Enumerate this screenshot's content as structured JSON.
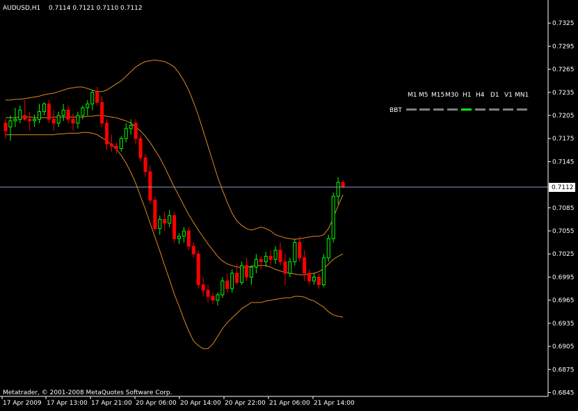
{
  "header": {
    "symbol": "AUDUSD,H1",
    "ohlc": "0.7114 0.7121 0.7110 0.7112"
  },
  "footer": {
    "copyright": "Metatrader, © 2001-2008 MetaQuotes Software Corp."
  },
  "indicator": {
    "label": "BBT",
    "timeframes": [
      "M1",
      "M5",
      "M15",
      "M30",
      "H1",
      "H4",
      "D1",
      "V1",
      "MN1"
    ],
    "active": "H1",
    "active_color": "#00ff00",
    "inactive_color": "#808080"
  },
  "colors": {
    "background": "#000000",
    "axis": "#ffffff",
    "bull": "#00ff00",
    "bear": "#ff0000",
    "bands": "#e08a1e",
    "price_line": "#8a9ec4"
  },
  "chart_data": {
    "type": "candlestick",
    "ylim": [
      0.684,
      0.7355
    ],
    "y_ticks": [
      "0.7325",
      "0.7295",
      "0.7265",
      "0.7235",
      "0.7205",
      "0.7175",
      "0.7145",
      "0.7085",
      "0.7055",
      "0.7025",
      "0.6995",
      "0.6965",
      "0.6935",
      "0.6905",
      "0.6875",
      "0.6845"
    ],
    "current_price": "0.7112",
    "x_labels": [
      "17 Apr 2009",
      "17 Apr 13:00",
      "17 Apr 21:00",
      "20 Apr 06:00",
      "20 Apr 14:00",
      "20 Apr 22:00",
      "21 Apr 06:00",
      "21 Apr 14:00"
    ],
    "candles": [
      [
        0.7195,
        0.72,
        0.7175,
        0.7185
      ],
      [
        0.719,
        0.7205,
        0.7172,
        0.7198
      ],
      [
        0.7198,
        0.7215,
        0.719,
        0.72
      ],
      [
        0.72,
        0.7218,
        0.7195,
        0.7212
      ],
      [
        0.7205,
        0.7225,
        0.7198,
        0.72
      ],
      [
        0.72,
        0.721,
        0.7185,
        0.7198
      ],
      [
        0.7198,
        0.7206,
        0.719,
        0.72
      ],
      [
        0.72,
        0.722,
        0.7195,
        0.721
      ],
      [
        0.721,
        0.7222,
        0.7205,
        0.722
      ],
      [
        0.722,
        0.7225,
        0.7195,
        0.72
      ],
      [
        0.72,
        0.7212,
        0.7185,
        0.7195
      ],
      [
        0.7195,
        0.721,
        0.719,
        0.7205
      ],
      [
        0.7205,
        0.722,
        0.7198,
        0.7212
      ],
      [
        0.7212,
        0.7218,
        0.7195,
        0.72
      ],
      [
        0.72,
        0.7208,
        0.7185,
        0.7195
      ],
      [
        0.7195,
        0.721,
        0.7188,
        0.7205
      ],
      [
        0.7205,
        0.7218,
        0.72,
        0.7215
      ],
      [
        0.7215,
        0.7225,
        0.7205,
        0.722
      ],
      [
        0.722,
        0.7238,
        0.7212,
        0.7235
      ],
      [
        0.7235,
        0.7242,
        0.7218,
        0.7222
      ],
      [
        0.7222,
        0.723,
        0.719,
        0.7195
      ],
      [
        0.7195,
        0.72,
        0.716,
        0.7168
      ],
      [
        0.7168,
        0.718,
        0.7158,
        0.7165
      ],
      [
        0.7165,
        0.717,
        0.7155,
        0.7162
      ],
      [
        0.7162,
        0.7178,
        0.7158,
        0.7175
      ],
      [
        0.7175,
        0.7195,
        0.717,
        0.7188
      ],
      [
        0.7188,
        0.72,
        0.718,
        0.7192
      ],
      [
        0.7195,
        0.72,
        0.7168,
        0.7175
      ],
      [
        0.7175,
        0.718,
        0.7145,
        0.715
      ],
      [
        0.715,
        0.7155,
        0.7125,
        0.7132
      ],
      [
        0.7132,
        0.714,
        0.709,
        0.7095
      ],
      [
        0.7095,
        0.71,
        0.7055,
        0.7058
      ],
      [
        0.7058,
        0.7075,
        0.705,
        0.707
      ],
      [
        0.707,
        0.708,
        0.7055,
        0.7065
      ],
      [
        0.7065,
        0.7082,
        0.706,
        0.7075
      ],
      [
        0.7075,
        0.708,
        0.704,
        0.7045
      ],
      [
        0.7045,
        0.7052,
        0.7038,
        0.7048
      ],
      [
        0.7048,
        0.706,
        0.704,
        0.7055
      ],
      [
        0.7055,
        0.706,
        0.703,
        0.7035
      ],
      [
        0.7035,
        0.704,
        0.702,
        0.7025
      ],
      [
        0.7025,
        0.703,
        0.698,
        0.6985
      ],
      [
        0.6985,
        0.6995,
        0.697,
        0.6978
      ],
      [
        0.6978,
        0.6985,
        0.6962,
        0.697
      ],
      [
        0.697,
        0.6975,
        0.696,
        0.6965
      ],
      [
        0.6965,
        0.6975,
        0.6958,
        0.6972
      ],
      [
        0.6972,
        0.6995,
        0.6968,
        0.699
      ],
      [
        0.699,
        0.7,
        0.6975,
        0.698
      ],
      [
        0.698,
        0.7005,
        0.6975,
        0.7
      ],
      [
        0.7,
        0.7012,
        0.6985,
        0.6988
      ],
      [
        0.6988,
        0.7015,
        0.6985,
        0.701
      ],
      [
        0.701,
        0.702,
        0.699,
        0.6995
      ],
      [
        0.6995,
        0.701,
        0.6985,
        0.7008
      ],
      [
        0.7008,
        0.7025,
        0.7,
        0.7018
      ],
      [
        0.7018,
        0.7022,
        0.7005,
        0.7015
      ],
      [
        0.7015,
        0.7028,
        0.7008,
        0.7022
      ],
      [
        0.7022,
        0.703,
        0.701,
        0.7018
      ],
      [
        0.7018,
        0.7035,
        0.7012,
        0.703
      ],
      [
        0.703,
        0.704,
        0.701,
        0.7015
      ],
      [
        0.7015,
        0.7025,
        0.6985,
        0.7
      ],
      [
        0.7,
        0.702,
        0.6995,
        0.7015
      ],
      [
        0.7015,
        0.7045,
        0.701,
        0.704
      ],
      [
        0.704,
        0.7048,
        0.7015,
        0.702
      ],
      [
        0.702,
        0.703,
        0.699,
        0.7
      ],
      [
        0.7,
        0.7005,
        0.6985,
        0.699
      ],
      [
        0.699,
        0.7,
        0.6985,
        0.6995
      ],
      [
        0.6995,
        0.7,
        0.698,
        0.6985
      ],
      [
        0.6985,
        0.7025,
        0.6982,
        0.702
      ],
      [
        0.702,
        0.705,
        0.7015,
        0.7045
      ],
      [
        0.7045,
        0.7105,
        0.704,
        0.71
      ],
      [
        0.71,
        0.7125,
        0.709,
        0.7118
      ],
      [
        0.7118,
        0.7121,
        0.711,
        0.7112
      ]
    ],
    "bands": {
      "upper": [
        0.7225,
        0.7225,
        0.7226,
        0.7226,
        0.7227,
        0.7228,
        0.7229,
        0.723,
        0.7232,
        0.7233,
        0.7234,
        0.7236,
        0.7238,
        0.724,
        0.7241,
        0.7242,
        0.7242,
        0.724,
        0.7238,
        0.7236,
        0.7236,
        0.7238,
        0.7242,
        0.7246,
        0.725,
        0.7256,
        0.7262,
        0.7268,
        0.7272,
        0.7275,
        0.7276,
        0.7277,
        0.7276,
        0.7275,
        0.7272,
        0.7268,
        0.726,
        0.725,
        0.7238,
        0.7222,
        0.7205,
        0.7185,
        0.7165,
        0.7145,
        0.7125,
        0.7108,
        0.7092,
        0.7078,
        0.7068,
        0.7062,
        0.7058,
        0.7056,
        0.7058,
        0.706,
        0.7058,
        0.7055,
        0.705,
        0.7048,
        0.7046,
        0.7045,
        0.7044,
        0.7045,
        0.7046,
        0.7047,
        0.7048,
        0.7048,
        0.705,
        0.7058,
        0.7072,
        0.7088,
        0.7102
      ],
      "middle": [
        0.7202,
        0.7202,
        0.7202,
        0.7203,
        0.7203,
        0.7203,
        0.7202,
        0.7202,
        0.7202,
        0.7202,
        0.7203,
        0.7203,
        0.7203,
        0.7203,
        0.7203,
        0.7203,
        0.7203,
        0.7204,
        0.7204,
        0.7205,
        0.7205,
        0.7204,
        0.7203,
        0.7202,
        0.72,
        0.7198,
        0.7195,
        0.719,
        0.7185,
        0.7178,
        0.717,
        0.716,
        0.715,
        0.7138,
        0.7125,
        0.7112,
        0.71,
        0.7088,
        0.7076,
        0.7066,
        0.7056,
        0.7047,
        0.7038,
        0.703,
        0.7022,
        0.7016,
        0.7012,
        0.701,
        0.7008,
        0.7008,
        0.7008,
        0.7009,
        0.701,
        0.701,
        0.701,
        0.7008,
        0.7005,
        0.7003,
        0.7001,
        0.7,
        0.6999,
        0.6998,
        0.6998,
        0.6999,
        0.7,
        0.7002,
        0.7006,
        0.7012,
        0.7018,
        0.7022,
        0.7025
      ],
      "lower": [
        0.718,
        0.718,
        0.718,
        0.718,
        0.718,
        0.718,
        0.718,
        0.718,
        0.718,
        0.718,
        0.718,
        0.7181,
        0.7181,
        0.7182,
        0.7182,
        0.7182,
        0.7183,
        0.7183,
        0.7182,
        0.718,
        0.7176,
        0.7172,
        0.7167,
        0.7161,
        0.7153,
        0.7143,
        0.7131,
        0.7117,
        0.71,
        0.7083,
        0.7065,
        0.7047,
        0.7029,
        0.701,
        0.6992,
        0.6973,
        0.6957,
        0.694,
        0.6925,
        0.6912,
        0.6906,
        0.6902,
        0.6902,
        0.6908,
        0.6918,
        0.6928,
        0.6936,
        0.6942,
        0.6948,
        0.6954,
        0.6958,
        0.6962,
        0.6962,
        0.6962,
        0.6964,
        0.6965,
        0.6966,
        0.6967,
        0.6968,
        0.6968,
        0.697,
        0.697,
        0.6969,
        0.6966,
        0.6964,
        0.696,
        0.6956,
        0.695,
        0.6946,
        0.6944,
        0.6943
      ]
    }
  }
}
